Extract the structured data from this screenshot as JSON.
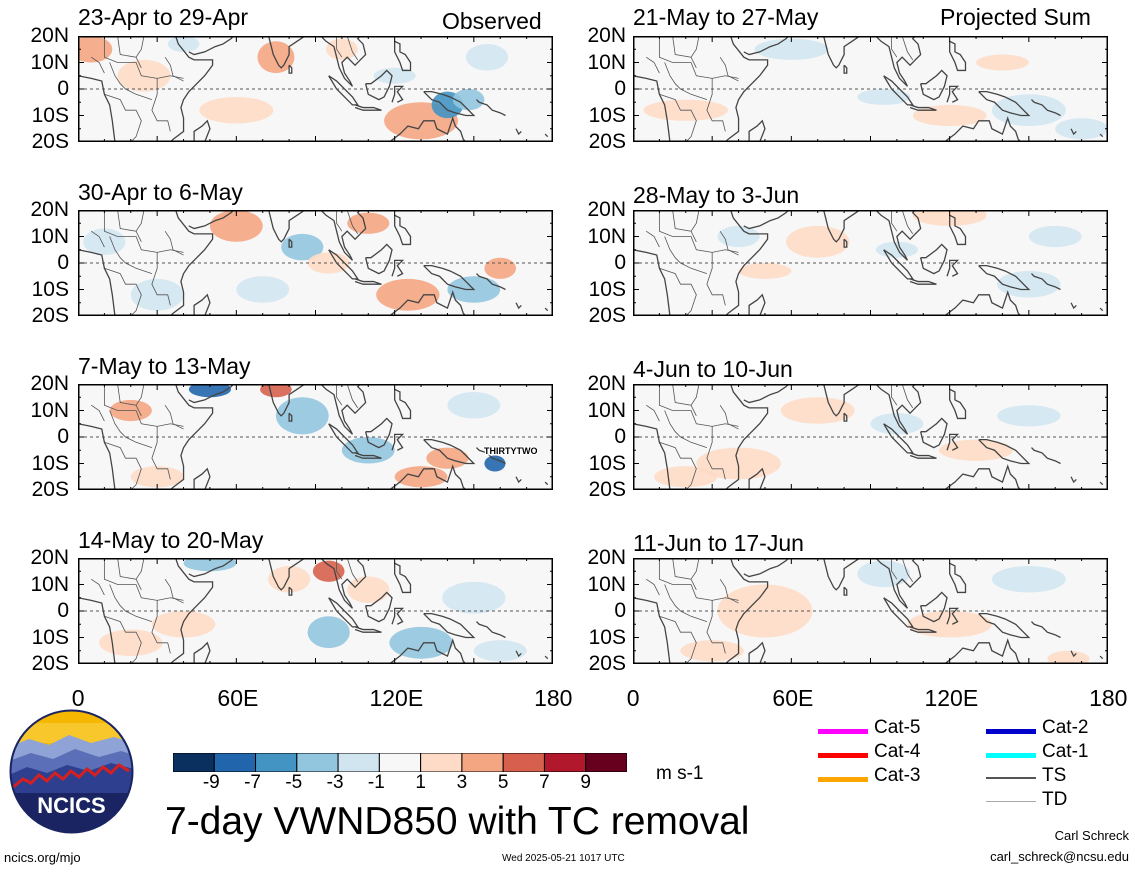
{
  "column_titles": {
    "left": "Observed",
    "right": "Projected Sum"
  },
  "panels": [
    {
      "label": "23-Apr to 29-Apr",
      "column": "left",
      "row": 0
    },
    {
      "label": "30-Apr to 6-May",
      "column": "left",
      "row": 1
    },
    {
      "label": "7-May to 13-May",
      "column": "left",
      "row": 2,
      "storm_label": "THIRTYTWO"
    },
    {
      "label": "14-May to 20-May",
      "column": "left",
      "row": 3
    },
    {
      "label": "21-May to 27-May",
      "column": "right",
      "row": 0
    },
    {
      "label": "28-May to 3-Jun",
      "column": "right",
      "row": 1
    },
    {
      "label": "4-Jun to 10-Jun",
      "column": "right",
      "row": 2
    },
    {
      "label": "11-Jun to 17-Jun",
      "column": "right",
      "row": 3
    }
  ],
  "lat_labels": [
    "20N",
    "10N",
    "0",
    "10S",
    "20S"
  ],
  "lon_labels": [
    "0",
    "60E",
    "120E",
    "180"
  ],
  "colorbar": {
    "labels": [
      "-9",
      "-7",
      "-5",
      "-3",
      "-1",
      "1",
      "3",
      "5",
      "7",
      "9"
    ],
    "colors": [
      "#0a3060",
      "#2166ac",
      "#4393c3",
      "#92c5de",
      "#d1e5f0",
      "#f7f7f7",
      "#fddbc7",
      "#f4a582",
      "#d6604d",
      "#b2182b",
      "#67001f"
    ],
    "units": "m s-1"
  },
  "legend": [
    {
      "label": "Cat-5",
      "color": "#ff00ff"
    },
    {
      "label": "Cat-4",
      "color": "#ff0000"
    },
    {
      "label": "Cat-3",
      "color": "#ffa500"
    },
    {
      "label": "Cat-2",
      "color": "#0000cc"
    },
    {
      "label": "Cat-1",
      "color": "#00ffff"
    },
    {
      "label": "TS",
      "color": "#555555"
    },
    {
      "label": "TD",
      "color": "#aaaaaa"
    }
  ],
  "title": "7-day VWND850 with TC removal",
  "logo_text": "NCICS",
  "footer": {
    "site": "ncics.org/mjo",
    "timestamp": "Wed 2025-05-21 1017 UTC",
    "author": "Carl Schreck",
    "email": "carl_schreck@ncsu.edu"
  }
}
